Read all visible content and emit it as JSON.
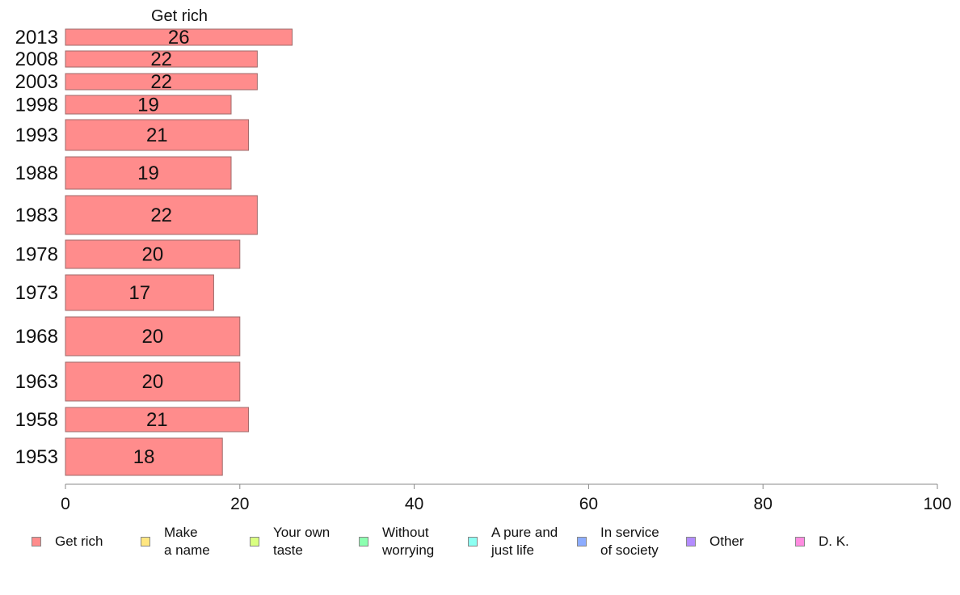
{
  "chart_data": {
    "type": "bar",
    "orientation": "horizontal",
    "panel_title": "Get rich",
    "categories": [
      "2013",
      "2008",
      "2003",
      "1998",
      "1993",
      "1988",
      "1983",
      "1978",
      "1973",
      "1968",
      "1963",
      "1958",
      "1953"
    ],
    "series": [
      {
        "name": "Get rich",
        "values": [
          26,
          22,
          22,
          19,
          21,
          19,
          22,
          20,
          17,
          20,
          20,
          21,
          18
        ]
      }
    ],
    "data_labels": [
      "26",
      "22",
      "22",
      "19",
      "21",
      "19",
      "22",
      "20",
      "17",
      "20",
      "20",
      "21",
      "18"
    ],
    "xlim": [
      0,
      100
    ],
    "xticks": [
      0,
      20,
      40,
      60,
      80,
      100
    ],
    "grid": false,
    "legend_position": "bottom",
    "colors": {
      "Get rich": "#ff8c8c",
      "Make a name": "#ffe680",
      "Your own taste": "#d9ff80",
      "Without worrying": "#8cffb0",
      "A pure and just life": "#8cfff2",
      "In service of society": "#8cacff",
      "Other": "#b38cff",
      "D. K.": "#ff8ce0",
      "bar_border": "#9e6a6a",
      "axis": "#888888"
    }
  },
  "legend": {
    "items": [
      {
        "label": "Get rich",
        "color": "#ff8c8c"
      },
      {
        "label": "Make\na name",
        "color": "#ffe680"
      },
      {
        "label": "Your own\ntaste",
        "color": "#d9ff80"
      },
      {
        "label": "Without\nworrying",
        "color": "#8cffb0"
      },
      {
        "label": "A pure and\njust life",
        "color": "#8cfff2"
      },
      {
        "label": "In service\nof society",
        "color": "#8cacff"
      },
      {
        "label": "Other",
        "color": "#b38cff"
      },
      {
        "label": "D. K.",
        "color": "#ff8ce0"
      }
    ]
  }
}
